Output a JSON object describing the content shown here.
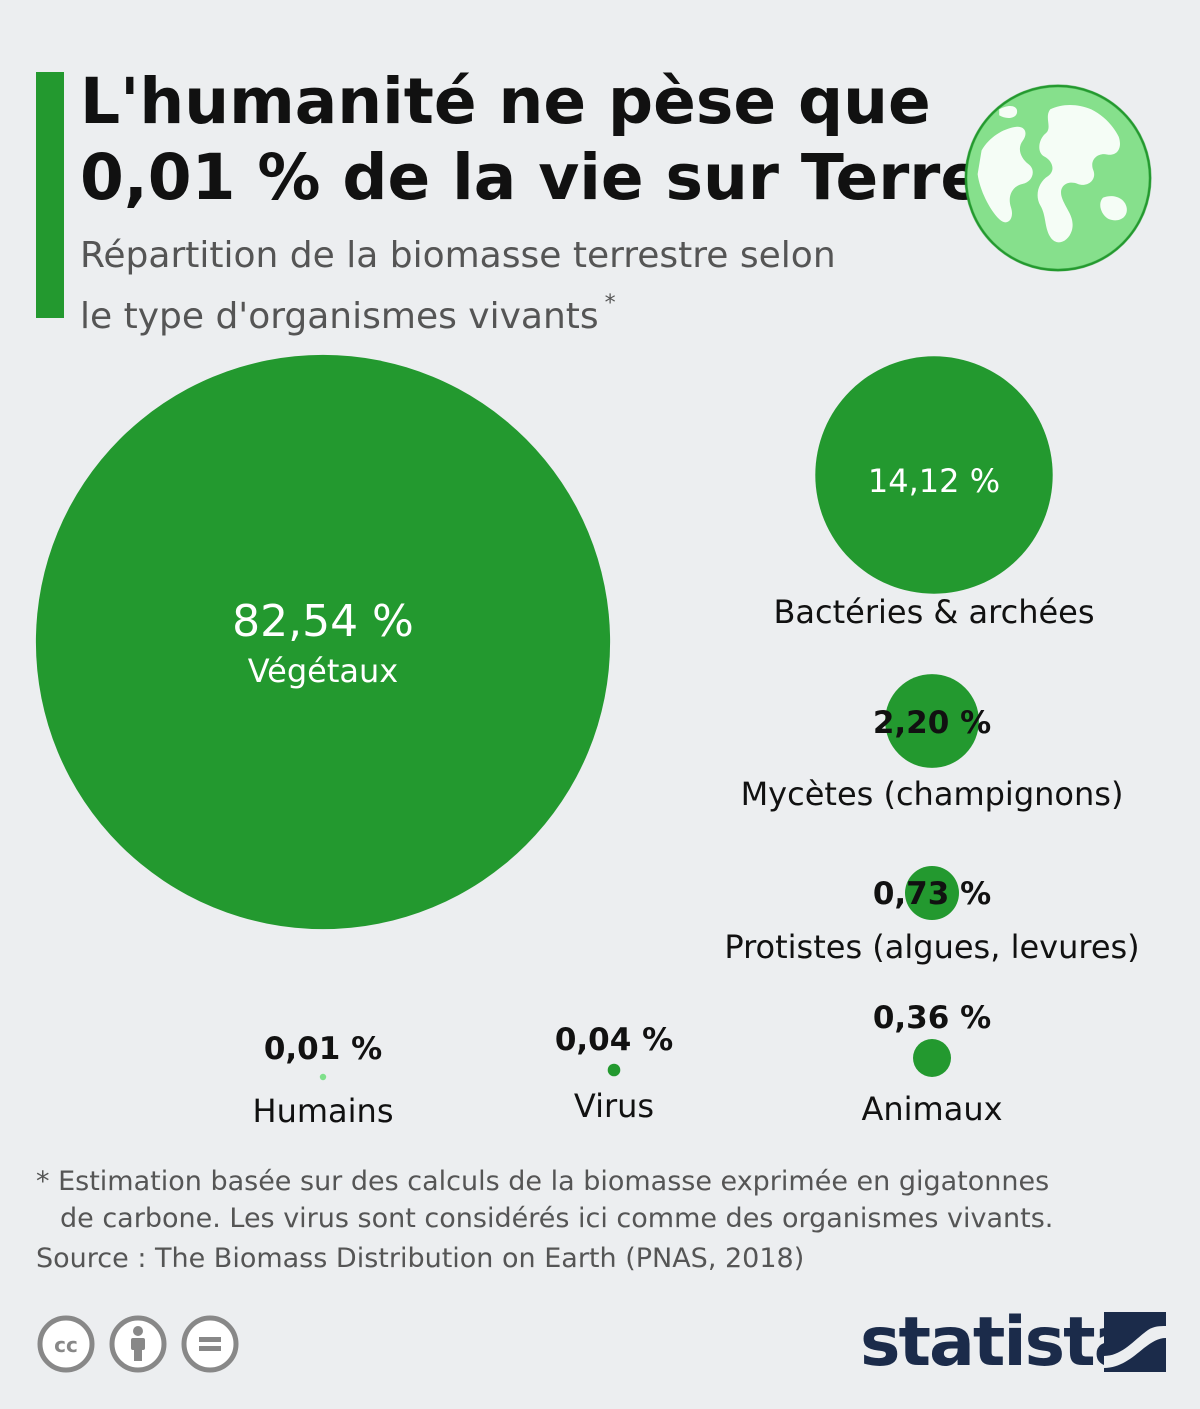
{
  "title_lines": [
    "L'humanité ne pèse que",
    "0,01 % de la vie sur Terre"
  ],
  "subtitle_lines": [
    "Répartition de la biomasse terrestre selon",
    "le type d'organismes vivants"
  ],
  "subtitle_marker": "*",
  "colors": {
    "accent": "#23992f",
    "bubble": "#23992f",
    "bubble_light": "#7ee08a",
    "background": "#eceef0",
    "brand": "#1b2b4a"
  },
  "chart_data": {
    "type": "bubble",
    "series": [
      {
        "label": "Végétaux",
        "value": 82.54,
        "value_label": "82,54 %"
      },
      {
        "label": "Bactéries & archées",
        "value": 14.12,
        "value_label": "14,12 %"
      },
      {
        "label": "Mycètes (champignons)",
        "value": 2.2,
        "value_label": "2,20 %"
      },
      {
        "label": "Protistes (algues, levures)",
        "value": 0.73,
        "value_label": "0,73 %"
      },
      {
        "label": "Animaux",
        "value": 0.36,
        "value_label": "0,36 %"
      },
      {
        "label": "Virus",
        "value": 0.04,
        "value_label": "0,04 %"
      },
      {
        "label": "Humains",
        "value": 0.01,
        "value_label": "0,01 %"
      }
    ]
  },
  "footnote_lines": [
    "* Estimation basée sur des calculs de la biomasse exprimée en gigatonnes",
    "de carbone. Les virus sont considérés ici comme des organismes vivants."
  ],
  "source": "Source : The Biomass Distribution on Earth (PNAS, 2018)",
  "license_icons": [
    "cc-icon",
    "attribution-icon",
    "no-derivatives-icon"
  ],
  "brand": "statista"
}
